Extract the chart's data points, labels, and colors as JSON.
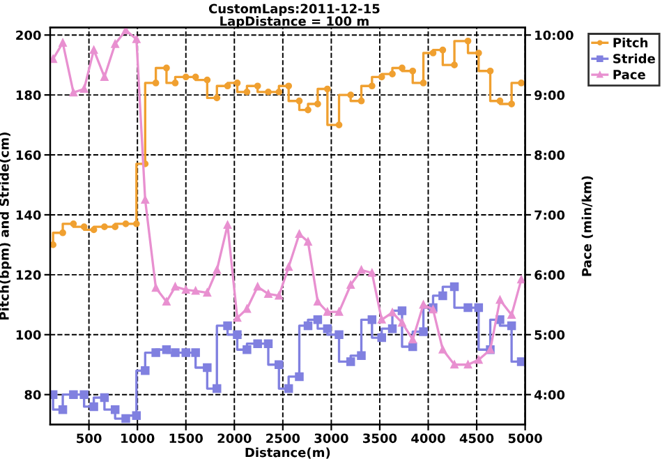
{
  "chart_data": {
    "type": "line",
    "title": "CustomLaps:2011-12-15",
    "subtitle": "LapDistance = 100 m",
    "xlabel": "Distance(m)",
    "ylabel": "Pitch(bpm) and Stride(cm)",
    "y2label": "Pace (min/km)",
    "x": [
      130,
      230,
      340,
      450,
      550,
      660,
      770,
      880,
      990,
      1080,
      1190,
      1300,
      1390,
      1500,
      1600,
      1720,
      1820,
      1930,
      2030,
      2130,
      2240,
      2350,
      2460,
      2560,
      2670,
      2760,
      2860,
      2960,
      3080,
      3200,
      3310,
      3420,
      3520,
      3630,
      3730,
      3840,
      3950,
      4050,
      4150,
      4270,
      4410,
      4520,
      4640,
      4740,
      4860,
      4960
    ],
    "series": [
      {
        "name": "Pitch",
        "type": "step",
        "color": "#f0a030",
        "marker": "circle",
        "values": [
          130,
          134,
          137,
          136,
          135,
          136,
          136,
          137,
          137,
          157,
          184,
          189,
          184,
          186,
          186,
          185,
          179,
          183,
          184,
          181,
          183,
          181,
          181,
          183,
          178,
          175,
          177,
          182,
          170,
          180,
          178,
          183,
          186,
          187,
          189,
          188,
          184,
          194,
          195,
          190,
          198,
          194,
          188,
          178,
          177,
          184
        ]
      },
      {
        "name": "Stride",
        "type": "step",
        "color": "#8080e0",
        "marker": "square",
        "values": [
          80,
          75,
          80,
          80,
          76,
          79,
          75,
          72,
          73,
          88,
          94,
          95,
          94,
          94,
          94,
          89,
          82,
          103,
          100,
          95,
          97,
          97,
          90,
          82,
          86,
          103,
          105,
          102,
          100,
          91,
          93,
          105,
          99,
          102,
          108,
          96,
          101,
          109,
          113,
          116,
          109,
          109,
          95,
          105,
          103,
          91
        ]
      },
      {
        "name": "Pace",
        "axis": "y2",
        "color": "#e890d0",
        "marker": "triangle",
        "values": [
          9.6,
          9.87,
          9.04,
          9.1,
          9.75,
          9.3,
          9.85,
          10.08,
          9.93,
          7.25,
          5.78,
          5.55,
          5.8,
          5.75,
          5.73,
          5.7,
          6.08,
          6.83,
          5.28,
          5.43,
          5.8,
          5.68,
          5.65,
          6.13,
          6.68,
          6.55,
          5.55,
          5.38,
          5.38,
          5.83,
          6.08,
          6.03,
          5.25,
          5.37,
          5.2,
          4.92,
          5.5,
          5.42,
          4.75,
          4.5,
          4.5,
          4.58,
          4.75,
          5.58,
          5.33,
          5.92
        ]
      }
    ],
    "xlim": [
      100,
      5000
    ],
    "xticks": [
      500,
      1000,
      1500,
      2000,
      2500,
      3000,
      3500,
      4000,
      4500,
      5000
    ],
    "ylim": [
      70,
      202.5
    ],
    "yticks": [
      80,
      100,
      120,
      140,
      160,
      180,
      200
    ],
    "y2lim": [
      3.5,
      10.125
    ],
    "y2ticks": [
      {
        "value": 4,
        "label": "4:00"
      },
      {
        "value": 5,
        "label": "5:00"
      },
      {
        "value": 6,
        "label": "6:00"
      },
      {
        "value": 7,
        "label": "7:00"
      },
      {
        "value": 8,
        "label": "8:00"
      },
      {
        "value": 9,
        "label": "9:00"
      },
      {
        "value": 10,
        "label": "10:00"
      }
    ],
    "grid": true,
    "legend": "top right"
  }
}
